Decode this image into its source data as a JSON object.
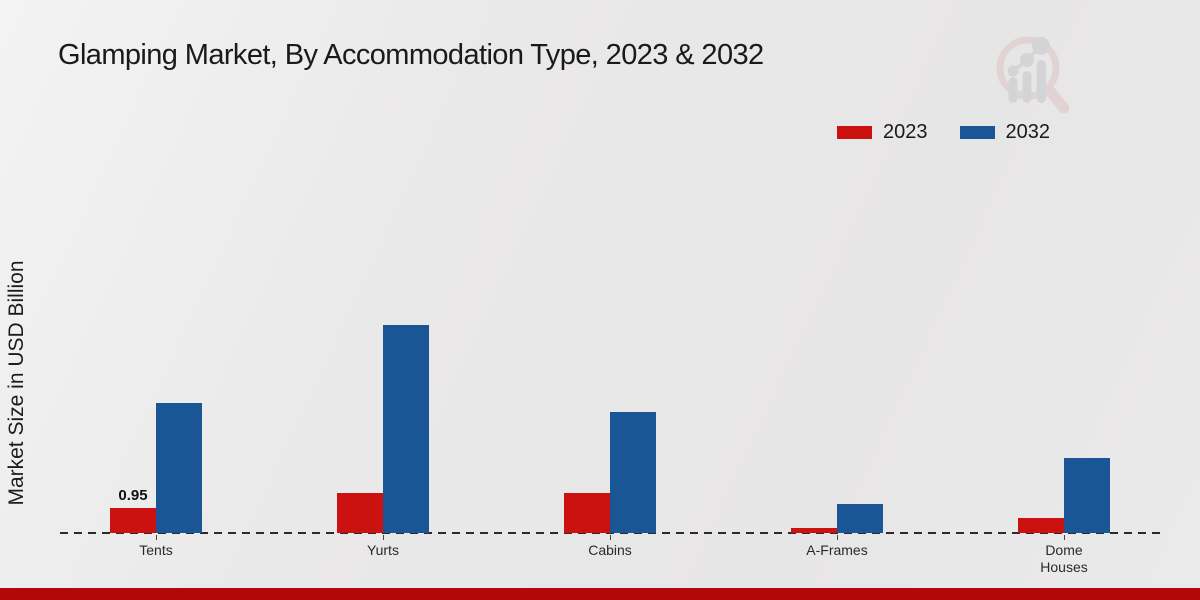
{
  "title": "Glamping Market, By Accommodation Type, 2023 & 2032",
  "ylabel": "Market Size in USD Billion",
  "colors": {
    "red_2023": "#cc1111",
    "blue_2032": "#1a5696",
    "baseline": "#2b2b2b",
    "footer_strip": "#b30808",
    "logo_pink": "#ddc3c6",
    "logo_gray": "#c6c6cb"
  },
  "legend": {
    "position": "top-right",
    "items": [
      {
        "label": "2023",
        "color": "#cc1111"
      },
      {
        "label": "2032",
        "color": "#1a5696"
      }
    ]
  },
  "chart_data": {
    "type": "bar",
    "title": "Glamping Market, By Accommodation Type, 2023 & 2032",
    "xlabel": "",
    "ylabel": "Market Size in USD Billion",
    "categories": [
      "Tents",
      "Yurts",
      "Cabins",
      "A-Frames",
      "Dome Houses"
    ],
    "series": [
      {
        "name": "2023",
        "color": "#cc1111",
        "values": [
          0.95,
          1.5,
          1.5,
          0.2,
          0.55
        ]
      },
      {
        "name": "2032",
        "color": "#1a5696",
        "values": [
          4.85,
          7.75,
          4.5,
          1.1,
          2.8
        ]
      }
    ],
    "annotations": [
      {
        "category": "Tents",
        "series": "2023",
        "text": "0.95"
      }
    ],
    "ylim": [
      0,
      8
    ],
    "grid": false,
    "y_axis_ticks_visible": false,
    "baseline_style": "dashed",
    "legend_position": "top-right"
  }
}
